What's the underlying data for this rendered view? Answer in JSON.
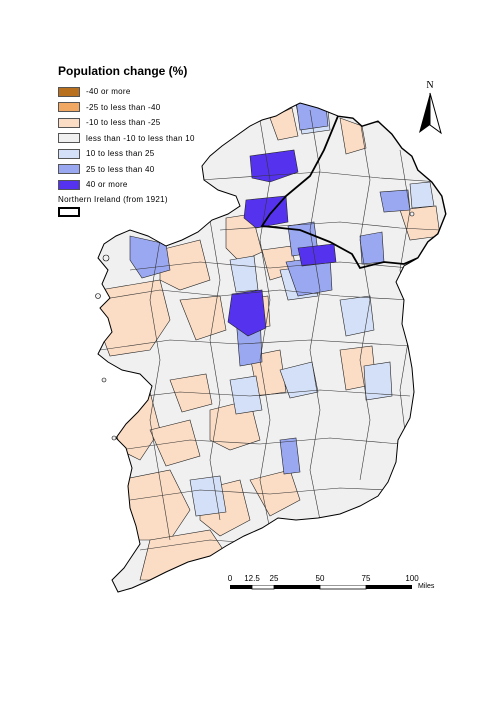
{
  "legend": {
    "title": "Population change (%)",
    "items": [
      {
        "label": "-40 or more",
        "color": "#b8701e"
      },
      {
        "label": "-25 to less than -40",
        "color": "#f0a862"
      },
      {
        "label": "-10 to less than -25",
        "color": "#fbdcc4"
      },
      {
        "label": "less than -10 to less than 10",
        "color": "#f0f0f0"
      },
      {
        "label": "10 to less than 25",
        "color": "#d4e0f7"
      },
      {
        "label": "25 to less than 40",
        "color": "#9aa8f2"
      },
      {
        "label": "40 or more",
        "color": "#5533ee"
      }
    ],
    "ni_label": "Northern Ireland (from 1921)"
  },
  "north_arrow": {
    "label": "N"
  },
  "scale_bar": {
    "ticks": [
      "0",
      "12.5",
      "25",
      "50",
      "75",
      "100"
    ],
    "units": "Miles"
  }
}
